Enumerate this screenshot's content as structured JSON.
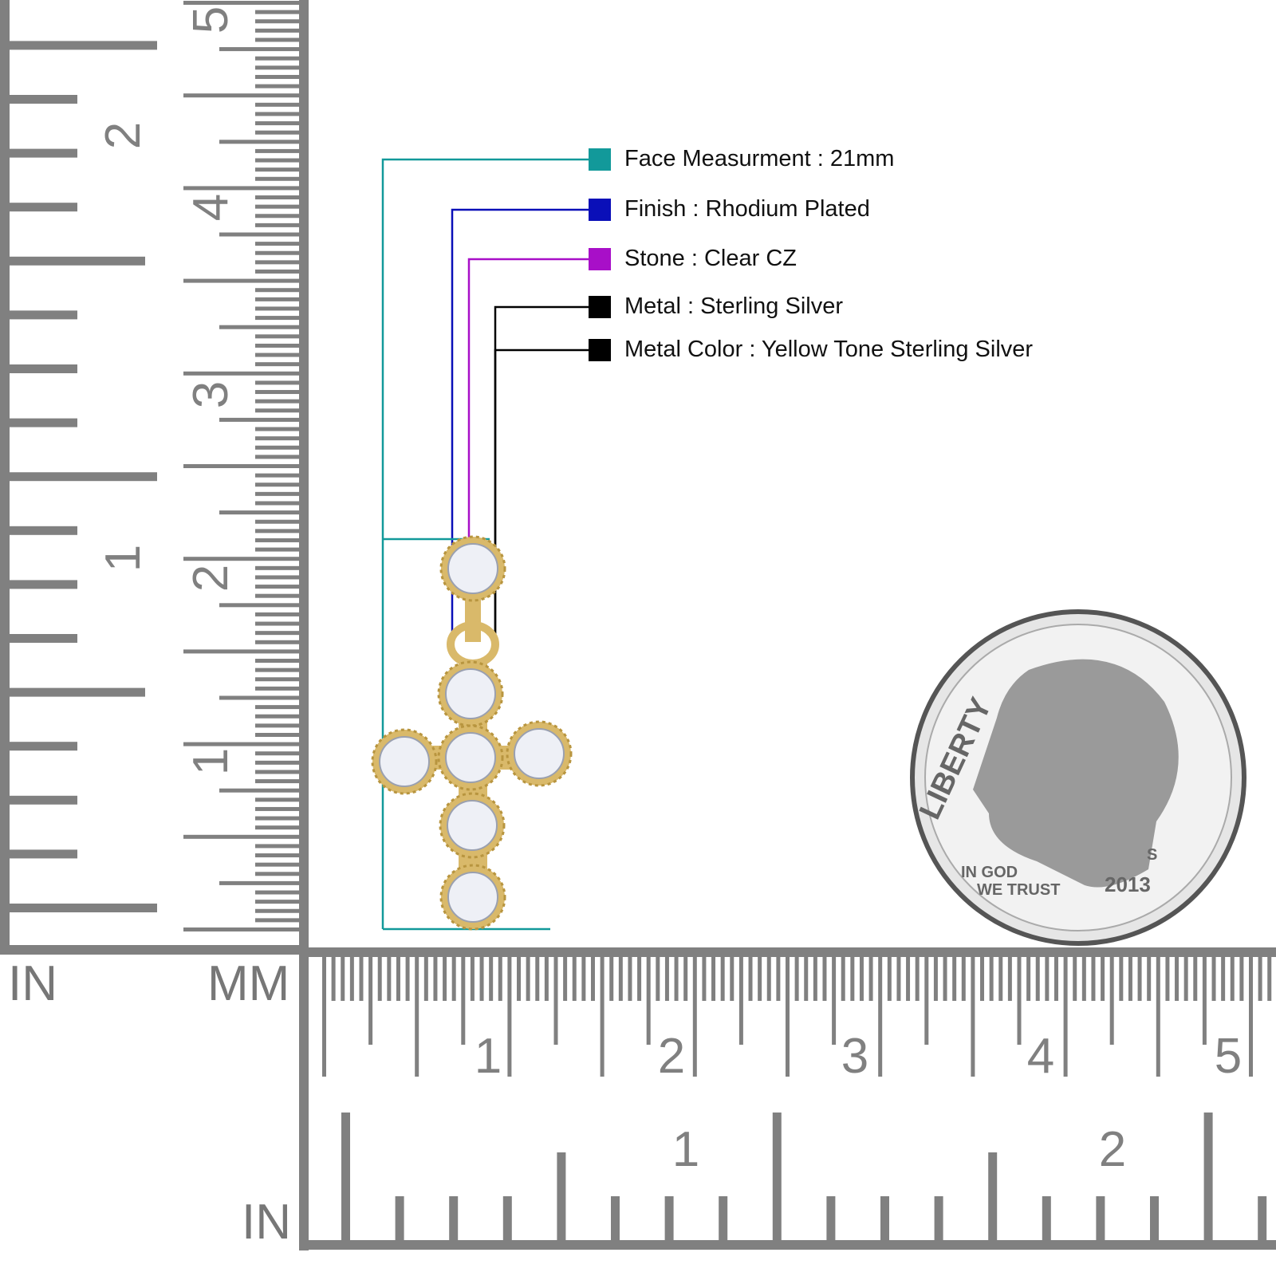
{
  "legend": [
    {
      "label": "Face Measurment : 21mm",
      "color": "#12999a"
    },
    {
      "label": "Finish : Rhodium Plated",
      "color": "#0a0fb8"
    },
    {
      "label": "Stone : Clear CZ",
      "color": "#a80fc8"
    },
    {
      "label": "Metal : Sterling Silver",
      "color": "#000000"
    },
    {
      "label": "Metal Color : Yellow Tone Sterling Silver",
      "color": "#000000"
    }
  ],
  "rulers": {
    "left_inch_label": "IN",
    "left_mm_label": "MM",
    "bottom_inch_label": "IN",
    "left_inch_numbers": [
      "1",
      "2"
    ],
    "left_cm_numbers": [
      "1",
      "2",
      "3",
      "4",
      "5"
    ],
    "bottom_cm_numbers": [
      "1",
      "2",
      "3",
      "4",
      "5"
    ],
    "bottom_inch_numbers": [
      "1",
      "2"
    ],
    "ruler_color": "#808080"
  },
  "coin": {
    "top_text": "LIBERTY",
    "motto_line1": "IN GOD",
    "motto_line2": "WE TRUST",
    "year": "2013",
    "mint": "S"
  },
  "metal_color": "#d9b96a"
}
